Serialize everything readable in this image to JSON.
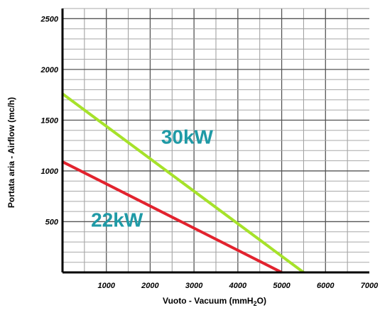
{
  "chart_data": {
    "type": "line",
    "title": "",
    "xlabel": "Vuoto - Vacuum (mmH",
    "xlabel_sub": "2",
    "xlabel_end": "O)",
    "ylabel": "Portata aria - Airflow (mc/h)",
    "xlim": [
      0,
      7000
    ],
    "ylim": [
      0,
      2600
    ],
    "x_ticks": [
      1000,
      2000,
      3000,
      4000,
      5000,
      6000,
      7000
    ],
    "y_ticks": [
      500,
      1000,
      1500,
      2000,
      2500
    ],
    "x_minor_step": 500,
    "y_minor_step": 100,
    "grid": true,
    "series": [
      {
        "name": "30kW",
        "color": "#a6e22a",
        "label_x": 2250,
        "label_y": 1270,
        "points": [
          [
            0,
            1760
          ],
          [
            5500,
            0
          ]
        ]
      },
      {
        "name": "22kW",
        "color": "#e2232e",
        "label_x": 650,
        "label_y": 450,
        "points": [
          [
            0,
            1090
          ],
          [
            5000,
            0
          ]
        ]
      }
    ],
    "label_color": "#1f9aa6"
  }
}
